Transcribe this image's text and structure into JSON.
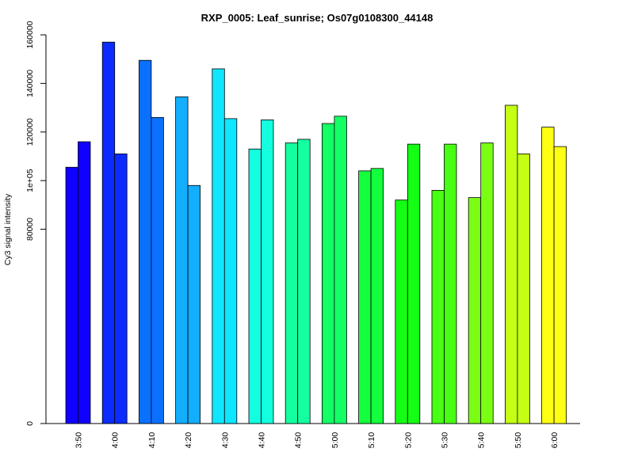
{
  "chart_data": {
    "type": "bar",
    "title": "RXP_0005: Leaf_sunrise; Os07g0108300_44148",
    "xlabel": "",
    "ylabel": "Cy3 signal intensity",
    "ylim": [
      0,
      160000
    ],
    "y_ticks": [
      {
        "value": 0,
        "label": "0"
      },
      {
        "value": 80000,
        "label": "80000"
      },
      {
        "value": 100000,
        "label": "1e+05"
      },
      {
        "value": 120000,
        "label": "120000"
      },
      {
        "value": 140000,
        "label": "140000"
      },
      {
        "value": 160000,
        "label": "160000"
      }
    ],
    "categories": [
      "3:50",
      "4:00",
      "4:10",
      "4:20",
      "4:30",
      "4:40",
      "4:50",
      "5:00",
      "5:10",
      "5:20",
      "5:30",
      "5:40",
      "5:50",
      "6:00"
    ],
    "colors": [
      "#0F00FF",
      "#0A2CFF",
      "#0A71FF",
      "#14AEFF",
      "#0FE6FF",
      "#14FFE0",
      "#14FF9F",
      "#14FF66",
      "#14FF3D",
      "#14FF14",
      "#47FF14",
      "#7AFF14",
      "#C4FF14",
      "#FFFF14"
    ],
    "series": [
      {
        "values": [
          105500,
          157000,
          149500,
          134500,
          146000,
          113000,
          115500,
          123500,
          104000,
          92000,
          96000,
          93000,
          131000,
          122000
        ]
      },
      {
        "values": [
          116000,
          111000,
          126000,
          98000,
          125500,
          125000,
          117000,
          126500,
          105000,
          115000,
          115000,
          115500,
          111000,
          114000
        ]
      }
    ],
    "grid": false,
    "legend": "none"
  }
}
